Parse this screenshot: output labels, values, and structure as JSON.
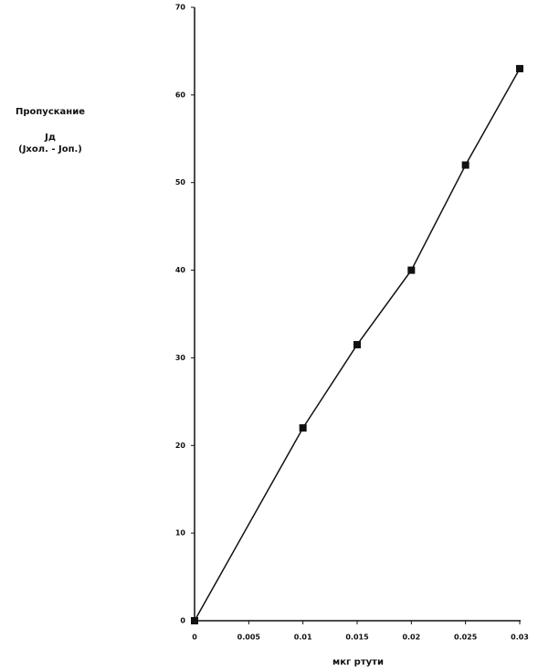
{
  "chart_data": {
    "type": "line",
    "ylabel": [
      "Пропускание",
      "Jд",
      "(Jхол. - Jоп.)"
    ],
    "xlabel": "мкг ртути",
    "x": [
      0,
      0.01,
      0.015,
      0.02,
      0.025,
      0.03
    ],
    "series": [
      {
        "color": "#111111",
        "values": [
          0,
          22,
          31.5,
          40,
          52,
          63
        ]
      }
    ],
    "xlim": [
      0,
      0.03
    ],
    "xticks": [
      0,
      0.005,
      0.01,
      0.015,
      0.02,
      0.025,
      0.03
    ],
    "ylim": [
      0,
      70
    ],
    "yticks": [
      0,
      10,
      20,
      30,
      40,
      50,
      60,
      70
    ],
    "grid": false
  }
}
